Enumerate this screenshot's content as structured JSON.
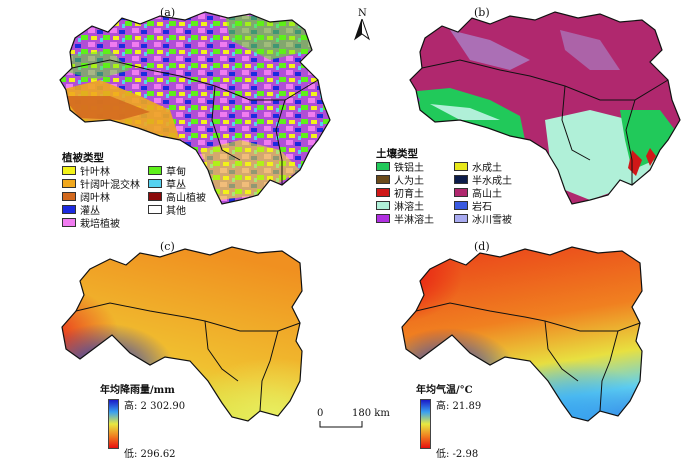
{
  "panels": {
    "a": {
      "label": "(a)"
    },
    "b": {
      "label": "(b)"
    },
    "c": {
      "label": "(c)"
    },
    "d": {
      "label": "(d)"
    }
  },
  "north_label": "N",
  "vegetation_legend": {
    "title": "植被类型",
    "items": [
      {
        "label": "针叶林",
        "color": "#f2f21a"
      },
      {
        "label": "针阔叶混交林",
        "color": "#f0a81e"
      },
      {
        "label": "阔叶林",
        "color": "#d2691e"
      },
      {
        "label": "灌丛",
        "color": "#1c2be0"
      },
      {
        "label": "栽培植被",
        "color": "#f07cf0"
      },
      {
        "label": "草甸",
        "color": "#5ef01a"
      },
      {
        "label": "草丛",
        "color": "#56d2f0"
      },
      {
        "label": "高山植被",
        "color": "#8b0a0a"
      },
      {
        "label": "其他",
        "color": "#ffffff"
      }
    ]
  },
  "soil_legend": {
    "title": "土壤类型",
    "items": [
      {
        "label": "铁铝土",
        "color": "#21c95a"
      },
      {
        "label": "人为土",
        "color": "#6b4a1a"
      },
      {
        "label": "初育土",
        "color": "#d01818"
      },
      {
        "label": "淋溶土",
        "color": "#b0f0d8"
      },
      {
        "label": "半淋溶土",
        "color": "#b030e0"
      },
      {
        "label": "水成土",
        "color": "#e8e81a"
      },
      {
        "label": "半水成土",
        "color": "#0c1c4a"
      },
      {
        "label": "高山土",
        "color": "#b0286e"
      },
      {
        "label": "岩石",
        "color": "#3a5ae0"
      },
      {
        "label": "冰川雪被",
        "color": "#a8aaf0"
      }
    ]
  },
  "precip_legend": {
    "title": "年均降雨量/mm",
    "high": "高: 2 302.90",
    "low": "低: 296.62"
  },
  "temp_legend": {
    "title": "年均气温/°C",
    "high": "高: 21.89",
    "low": "低: -2.98"
  },
  "scale_bar": {
    "start": "0",
    "end": "180 km"
  }
}
